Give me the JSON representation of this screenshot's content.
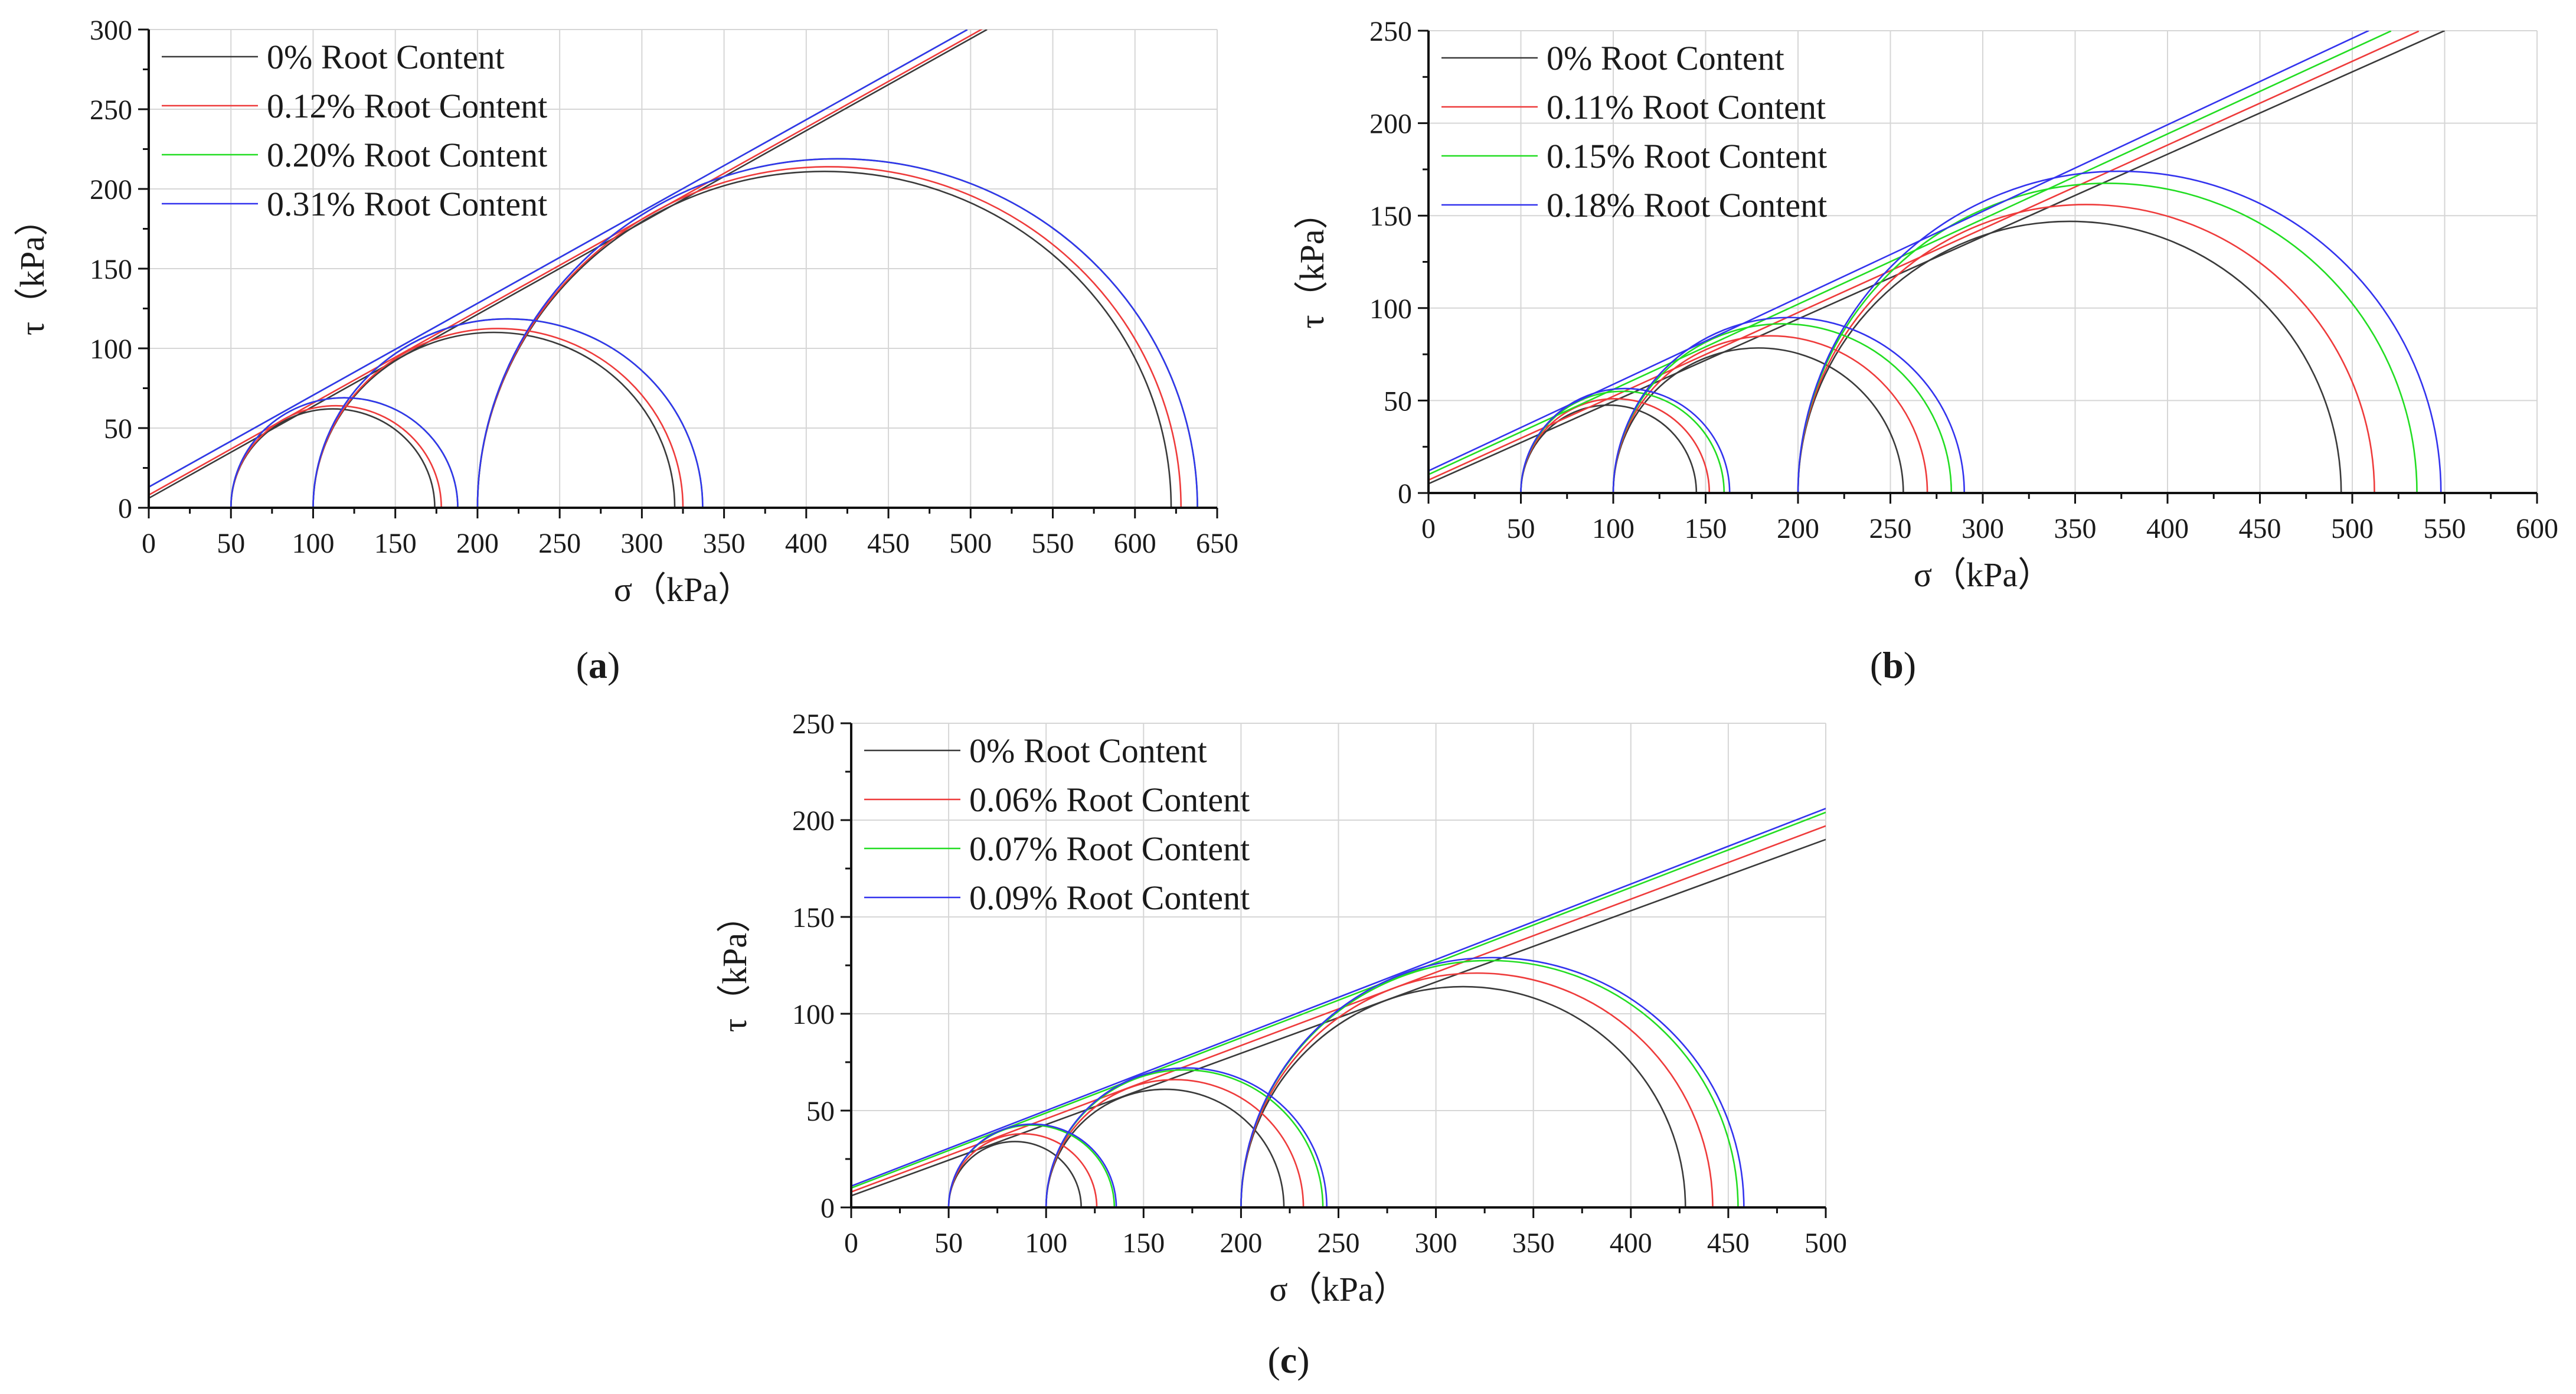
{
  "colors": {
    "black": "#3a3a3a",
    "red": "#ee3b3b",
    "green": "#22dd22",
    "blue": "#3333ee",
    "teal": "#1a8a8a",
    "grid": "#d6d6d6",
    "axis": "#111111"
  },
  "chart_data": [
    {
      "panel": "a",
      "caption": "a",
      "type": "line",
      "subtype": "mohr-coulomb",
      "xlabel": "σ（kPa）",
      "ylabel": "τ（kPa）",
      "xlim": [
        0,
        650
      ],
      "ylim": [
        0,
        300
      ],
      "xticks": [
        "0",
        "50",
        "100",
        "150",
        "200",
        "250",
        "300",
        "350",
        "400",
        "450",
        "500",
        "550",
        "600",
        "650"
      ],
      "yticks": [
        "0",
        "50",
        "100",
        "150",
        "200",
        "250",
        "300"
      ],
      "grid": true,
      "legend_position": "top-left",
      "series": [
        {
          "name": "0% Root Content",
          "color": "#3a3a3a",
          "envelope": {
            "c": 6,
            "slope": 0.5765,
            "x_end": 510
          },
          "circles": [
            [
              50,
              174
            ],
            [
              100,
              320
            ],
            [
              200,
              622
            ]
          ]
        },
        {
          "name": "0.12% Root Content",
          "color": "#ee3b3b",
          "envelope": {
            "c": 8,
            "slope": 0.5765,
            "x_end": 507
          },
          "circles": [
            [
              50,
              178
            ],
            [
              100,
              325
            ],
            [
              200,
              628
            ]
          ]
        },
        {
          "name": "0.20% Root Content",
          "color": "#22dd22",
          "envelope": {
            "c": 13,
            "slope": 0.5761,
            "x_end": 498
          },
          "circles": [
            [
              50,
              188
            ],
            [
              100,
              337
            ],
            [
              200,
              638
            ]
          ]
        },
        {
          "name": "0.31% Root Content",
          "color": "#3333ee",
          "envelope": {
            "c": 13,
            "slope": 0.5761,
            "x_end": 498
          },
          "circles": [
            [
              50,
              188
            ],
            [
              100,
              337
            ],
            [
              200,
              638
            ]
          ]
        }
      ]
    },
    {
      "panel": "b",
      "caption": "b",
      "type": "line",
      "subtype": "mohr-coulomb",
      "xlabel": "σ（kPa）",
      "ylabel": "τ（kPa）",
      "xlim": [
        0,
        600
      ],
      "ylim": [
        0,
        250
      ],
      "xticks": [
        "0",
        "50",
        "100",
        "150",
        "200",
        "250",
        "300",
        "350",
        "400",
        "450",
        "500",
        "550",
        "600"
      ],
      "yticks": [
        "0",
        "50",
        "100",
        "150",
        "200",
        "250"
      ],
      "grid": true,
      "legend_position": "top-left",
      "series": [
        {
          "name": "0% Root Content",
          "color": "#3a3a3a",
          "envelope": {
            "c": 5,
            "slope": 0.4455,
            "x_end": 550
          },
          "circles": [
            [
              50,
              145
            ],
            [
              100,
              257
            ],
            [
              200,
              494
            ]
          ]
        },
        {
          "name": "0.11% Root Content",
          "color": "#ee3b3b",
          "envelope": {
            "c": 7,
            "slope": 0.4529,
            "x_end": 536
          },
          "circles": [
            [
              50,
              152
            ],
            [
              100,
              270
            ],
            [
              200,
              512
            ]
          ]
        },
        {
          "name": "0.15% Root Content",
          "color": "#22dd22",
          "envelope": {
            "c": 10,
            "slope": 0.4604,
            "x_end": 521
          },
          "circles": [
            [
              50,
              160
            ],
            [
              100,
              283
            ],
            [
              200,
              535
            ]
          ]
        },
        {
          "name": "0.18% Root Content",
          "color": "#3333ee",
          "envelope": {
            "c": 12,
            "slope": 0.4678,
            "x_end": 509
          },
          "circles": [
            [
              50,
              163
            ],
            [
              100,
              290
            ],
            [
              200,
              548
            ]
          ]
        }
      ]
    },
    {
      "panel": "c",
      "caption": "c",
      "type": "line",
      "subtype": "mohr-coulomb",
      "xlabel": "σ（kPa）",
      "ylabel": "τ（kPa）",
      "xlim": [
        0,
        500
      ],
      "ylim": [
        0,
        250
      ],
      "xticks": [
        "0",
        "50",
        "100",
        "150",
        "200",
        "250",
        "300",
        "350",
        "400",
        "450",
        "500"
      ],
      "yticks": [
        "0",
        "50",
        "100",
        "150",
        "200",
        "250"
      ],
      "grid": true,
      "legend_position": "top-left",
      "series": [
        {
          "name": "0% Root Content",
          "color": "#3a3a3a",
          "envelope": {
            "c": 6,
            "slope": 0.368,
            "x_end": 500
          },
          "circles": [
            [
              50,
              118
            ],
            [
              100,
              222
            ],
            [
              200,
              428
            ]
          ]
        },
        {
          "name": "0.06% Root Content",
          "color": "#ee3b3b",
          "envelope": {
            "c": 8,
            "slope": 0.378,
            "x_end": 500
          },
          "circles": [
            [
              50,
              126
            ],
            [
              100,
              232
            ],
            [
              200,
              442
            ]
          ]
        },
        {
          "name": "0.07% Root Content",
          "color": "#22dd22",
          "envelope": {
            "c": 10,
            "slope": 0.388,
            "x_end": 500
          },
          "circles": [
            [
              50,
              135
            ],
            [
              100,
              242
            ],
            [
              200,
              455
            ]
          ]
        },
        {
          "name": "0.09% Root Content",
          "color": "#3333ee",
          "envelope": {
            "c": 11,
            "slope": 0.39,
            "x_end": 500
          },
          "circles": [
            [
              50,
              136
            ],
            [
              100,
              244
            ],
            [
              200,
              458
            ]
          ]
        }
      ]
    }
  ]
}
